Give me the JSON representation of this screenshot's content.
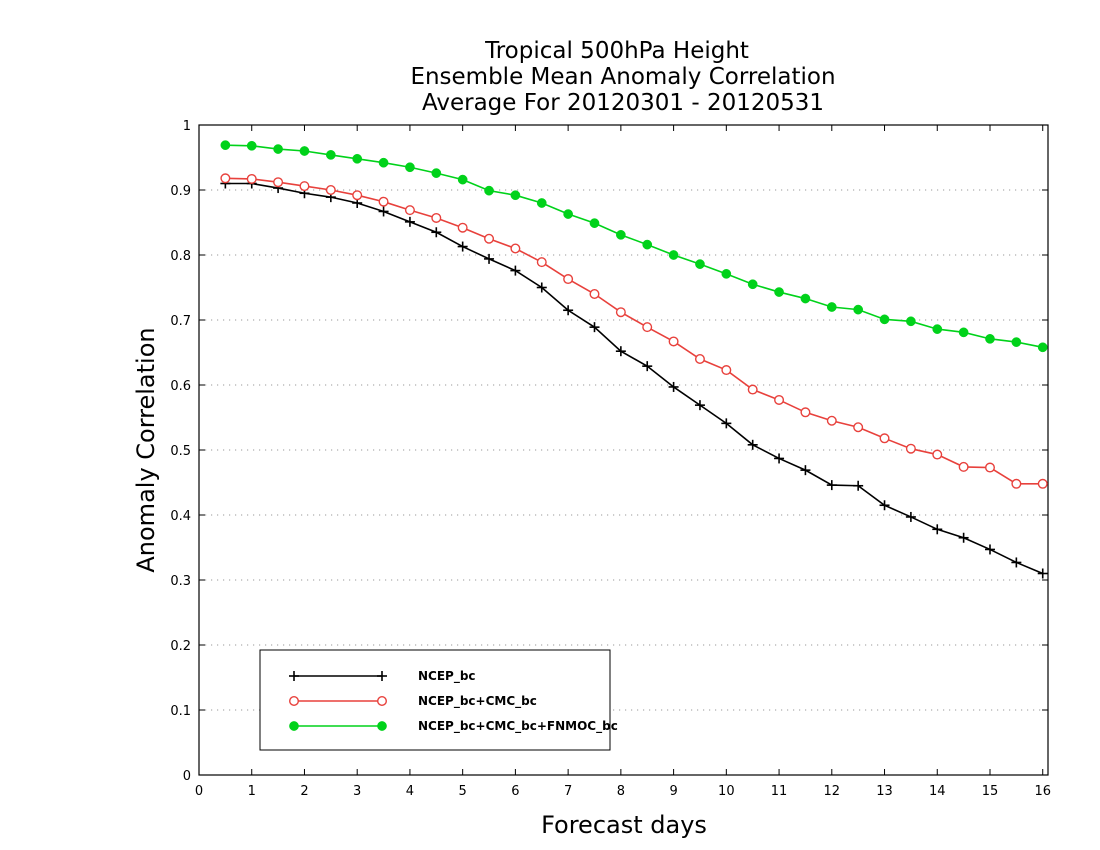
{
  "chart_data": {
    "type": "line",
    "title_lines": [
      "Tropical 500hPa Height",
      "Ensemble Mean Anomaly Correlation",
      "Average For 20120301 - 20120531"
    ],
    "xlabel": "Forecast days",
    "ylabel": "Anomaly Correlation",
    "xlim": [
      0,
      16.1
    ],
    "ylim": [
      0,
      1
    ],
    "x_ticks": [
      0,
      1,
      2,
      3,
      4,
      5,
      6,
      7,
      8,
      9,
      10,
      11,
      12,
      13,
      14,
      15,
      16
    ],
    "y_ticks": [
      0,
      0.1,
      0.2,
      0.3,
      0.4,
      0.5,
      0.6,
      0.7,
      0.8,
      0.9,
      1
    ],
    "y_tick_labels": [
      "0",
      "0.1",
      "0.2",
      "0.3",
      "0.4",
      "0.5",
      "0.6",
      "0.7",
      "0.8",
      "0.9",
      "1"
    ],
    "grid": "horizontal dotted",
    "legend_position": "bottom-left",
    "x": [
      0.5,
      1,
      1.5,
      2,
      2.5,
      3,
      3.5,
      4,
      4.5,
      5,
      5.5,
      6,
      6.5,
      7,
      7.5,
      8,
      8.5,
      9,
      9.5,
      10,
      10.5,
      11,
      11.5,
      12,
      12.5,
      13,
      13.5,
      14,
      14.5,
      15,
      15.5,
      16
    ],
    "series": [
      {
        "name": "NCEP_bc",
        "color": "#000000",
        "marker": "plus",
        "values": [
          0.91,
          0.91,
          0.903,
          0.895,
          0.889,
          0.88,
          0.867,
          0.851,
          0.835,
          0.813,
          0.794,
          0.776,
          0.75,
          0.715,
          0.689,
          0.652,
          0.629,
          0.597,
          0.569,
          0.541,
          0.508,
          0.487,
          0.469,
          0.446,
          0.445,
          0.415,
          0.397,
          0.378,
          0.365,
          0.347,
          0.327,
          0.31
        ]
      },
      {
        "name": "NCEP_bc+CMC_bc",
        "color": "#e8413c",
        "marker": "open-circle",
        "values": [
          0.918,
          0.917,
          0.912,
          0.906,
          0.9,
          0.892,
          0.882,
          0.869,
          0.857,
          0.842,
          0.825,
          0.81,
          0.789,
          0.763,
          0.74,
          0.712,
          0.689,
          0.667,
          0.64,
          0.623,
          0.593,
          0.577,
          0.558,
          0.545,
          0.535,
          0.518,
          0.502,
          0.493,
          0.474,
          0.473,
          0.448,
          0.448
        ]
      },
      {
        "name": "NCEP_bc+CMC_bc+FNMOC_bc",
        "color": "#00d21a",
        "marker": "filled-circle",
        "values": [
          0.969,
          0.968,
          0.963,
          0.96,
          0.954,
          0.948,
          0.942,
          0.935,
          0.926,
          0.916,
          0.899,
          0.892,
          0.88,
          0.863,
          0.849,
          0.831,
          0.816,
          0.8,
          0.786,
          0.771,
          0.755,
          0.743,
          0.733,
          0.72,
          0.716,
          0.701,
          0.698,
          0.686,
          0.681,
          0.671,
          0.666,
          0.658
        ]
      }
    ]
  }
}
